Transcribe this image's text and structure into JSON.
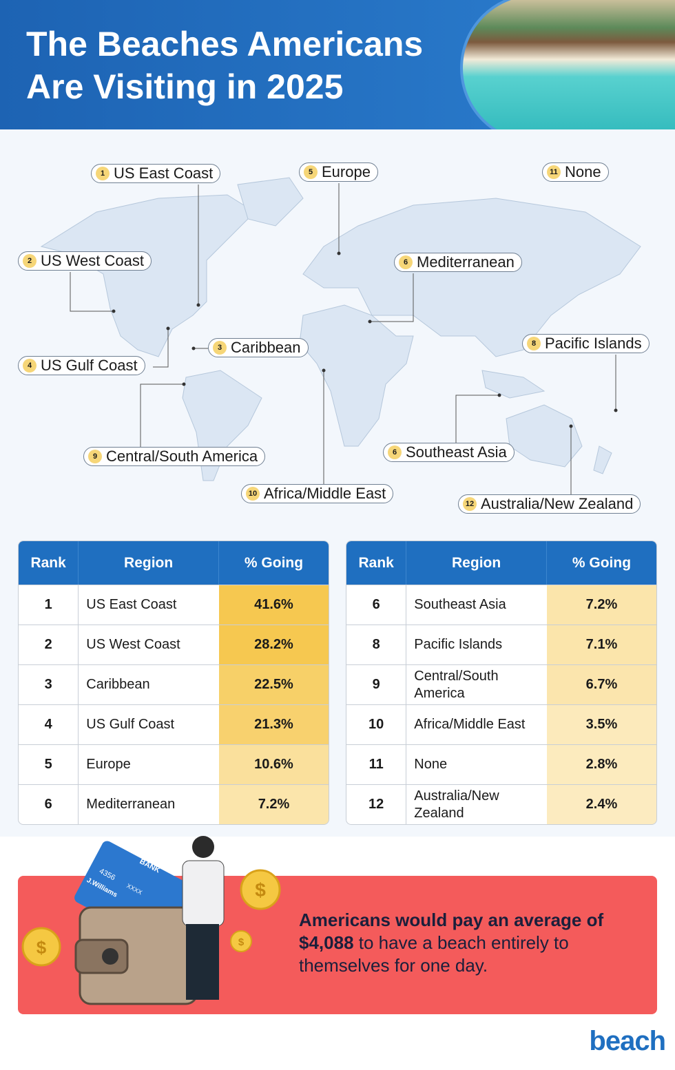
{
  "header": {
    "title_lines": [
      "The Beaches Americans",
      "Are Visiting in 2025"
    ]
  },
  "map": {
    "labels": [
      {
        "rank": "1",
        "label": "US East Coast"
      },
      {
        "rank": "5",
        "label": "Europe"
      },
      {
        "rank": "11",
        "label": "None"
      },
      {
        "rank": "2",
        "label": "US West Coast"
      },
      {
        "rank": "6",
        "label": "Mediterranean"
      },
      {
        "rank": "8",
        "label": "Pacific Islands"
      },
      {
        "rank": "3",
        "label": "Caribbean"
      },
      {
        "rank": "4",
        "label": "US Gulf Coast"
      },
      {
        "rank": "6",
        "label": "Southeast Asia"
      },
      {
        "rank": "9",
        "label": "Central/South America"
      },
      {
        "rank": "10",
        "label": "Africa/Middle East"
      },
      {
        "rank": "12",
        "label": "Australia/New Zealand"
      }
    ]
  },
  "tables": [
    {
      "headers": [
        "Rank",
        "Region",
        "% Going"
      ],
      "rows": [
        [
          "1",
          "US East Coast",
          "41.6%"
        ],
        [
          "2",
          "US West Coast",
          "28.2%"
        ],
        [
          "3",
          "Caribbean",
          "22.5%"
        ],
        [
          "4",
          "US Gulf Coast",
          "21.3%"
        ],
        [
          "5",
          "Europe",
          "10.6%"
        ],
        [
          "6",
          "Mediterranean",
          "7.2%"
        ]
      ]
    },
    {
      "headers": [
        "Rank",
        "Region",
        "% Going"
      ],
      "rows": [
        [
          "6",
          "Southeast Asia",
          "7.2%"
        ],
        [
          "8",
          "Pacific Islands",
          "7.1%"
        ],
        [
          "9",
          "Central/South America",
          "6.7%"
        ],
        [
          "10",
          "Africa/Middle East",
          "3.5%"
        ],
        [
          "11",
          "None",
          "2.8%"
        ],
        [
          "12",
          "Australia/New Zealand",
          "2.4%"
        ]
      ]
    }
  ],
  "callout": {
    "bold": "Americans would pay an average of $4,088",
    "regular": "to have a beach entirely to themselves for one day."
  },
  "illustration": {
    "card_bank": "BANK",
    "card_number": "4356",
    "card_mask": "XXXX",
    "card_holder": "J.Williams",
    "coin_symbol": "$"
  },
  "logo": "beach"
}
